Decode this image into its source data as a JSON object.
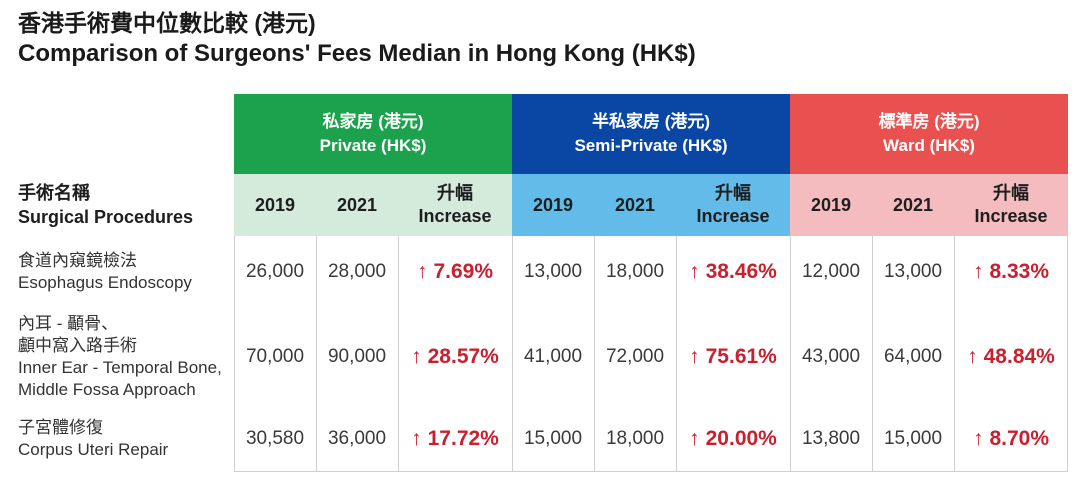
{
  "title": {
    "zh": "香港手術費中位數比較 (港元)",
    "en": "Comparison of Surgeons' Fees Median in Hong Kong (HK$)"
  },
  "header": {
    "procedure_zh": "手術名稱",
    "procedure_en": "Surgical Procedures",
    "year1": "2019",
    "year2": "2021",
    "increase_zh": "升幅",
    "increase_en": "Increase",
    "private_zh": "私家房 (港元)",
    "private_en": "Private (HK$)",
    "semi_zh": "半私家房 (港元)",
    "semi_en": "Semi-Private (HK$)",
    "ward_zh": "標準房 (港元)",
    "ward_en": "Ward (HK$)"
  },
  "colors": {
    "private_group": "#1ca24c",
    "semi_group": "#0a47a5",
    "ward_group": "#e8514f",
    "private_sub": "#d4eadb",
    "semi_sub": "#62bbe9",
    "ward_sub": "#f5bcc0",
    "increase_text": "#c8202e"
  },
  "chart_data": {
    "type": "table",
    "title": "Comparison of Surgeons' Fees Median in Hong Kong (HK$)",
    "columns": [
      "Private 2019",
      "Private 2021",
      "Private Increase",
      "Semi-Private 2019",
      "Semi-Private 2021",
      "Semi-Private Increase",
      "Ward 2019",
      "Ward 2021",
      "Ward Increase"
    ],
    "rows": [
      {
        "procedure_lines": [
          "食道內窺鏡檢法",
          "Esophagus Endoscopy"
        ],
        "private": {
          "y2019": "26,000",
          "y2021": "28,000",
          "increase": "7.69%"
        },
        "semi": {
          "y2019": "13,000",
          "y2021": "18,000",
          "increase": "38.46%"
        },
        "ward": {
          "y2019": "12,000",
          "y2021": "13,000",
          "increase": "8.33%"
        }
      },
      {
        "procedure_lines": [
          "內耳 - 顳骨、",
          "顱中窩入路手術",
          "Inner Ear - Temporal Bone,",
          "Middle Fossa Approach"
        ],
        "private": {
          "y2019": "70,000",
          "y2021": "90,000",
          "increase": "28.57%"
        },
        "semi": {
          "y2019": "41,000",
          "y2021": "72,000",
          "increase": "75.61%"
        },
        "ward": {
          "y2019": "43,000",
          "y2021": "64,000",
          "increase": "48.84%"
        }
      },
      {
        "procedure_lines": [
          "子宮體修復",
          "Corpus Uteri Repair"
        ],
        "private": {
          "y2019": "30,580",
          "y2021": "36,000",
          "increase": "17.72%"
        },
        "semi": {
          "y2019": "15,000",
          "y2021": "18,000",
          "increase": "20.00%"
        },
        "ward": {
          "y2019": "13,800",
          "y2021": "15,000",
          "increase": "8.70%"
        }
      }
    ]
  }
}
